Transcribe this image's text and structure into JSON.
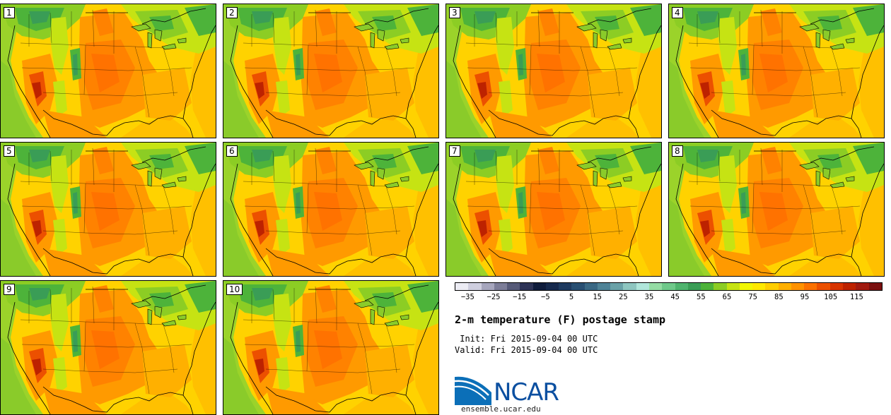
{
  "panels": [
    {
      "label": "1"
    },
    {
      "label": "2"
    },
    {
      "label": "3"
    },
    {
      "label": "4"
    },
    {
      "label": "5"
    },
    {
      "label": "6"
    },
    {
      "label": "7"
    },
    {
      "label": "8"
    },
    {
      "label": "9"
    },
    {
      "label": "10"
    }
  ],
  "colorbar": {
    "colors": [
      "#ececf4",
      "#cfcfdf",
      "#a6a6bd",
      "#7c7d98",
      "#565a78",
      "#2d3356",
      "#0f1c3c",
      "#16294d",
      "#1e3a5f",
      "#284f72",
      "#3a6884",
      "#4f8397",
      "#6aa2a8",
      "#8ec6c0",
      "#b0e6db",
      "#95dca4",
      "#6fc98a",
      "#4fb46e",
      "#3a9d56",
      "#4db33a",
      "#8ccd24",
      "#c6e313",
      "#f2f703",
      "#ffe900",
      "#ffce00",
      "#ffb000",
      "#ff9200",
      "#fb7100",
      "#ec5000",
      "#d83400",
      "#bd2200",
      "#a01a10",
      "#7a1010"
    ],
    "tick_labels": [
      "-35",
      "-25",
      "-15",
      "-5",
      "5",
      "15",
      "25",
      "35",
      "45",
      "55",
      "65",
      "75",
      "85",
      "95",
      "105",
      "115"
    ],
    "tick_values": [
      -35,
      -25,
      -15,
      -5,
      5,
      15,
      25,
      35,
      45,
      55,
      65,
      75,
      85,
      95,
      105,
      115
    ],
    "min": -40,
    "max": 125
  },
  "title": "2-m temperature (F) postage stamp",
  "init_line": " Init: Fri 2015-09-04 00 UTC",
  "valid_line": "Valid: Fri 2015-09-04 00 UTC",
  "logo": {
    "text": "NCAR",
    "color": "#0b4fa0"
  },
  "website": "ensemble.ucar.edu"
}
